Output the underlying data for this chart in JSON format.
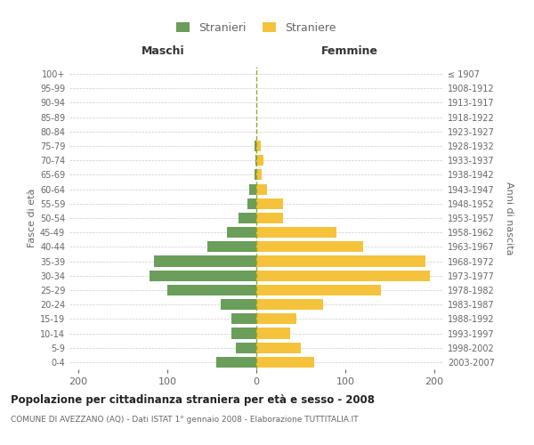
{
  "age_groups_bottom_to_top": [
    "0-4",
    "5-9",
    "10-14",
    "15-19",
    "20-24",
    "25-29",
    "30-34",
    "35-39",
    "40-44",
    "45-49",
    "50-54",
    "55-59",
    "60-64",
    "65-69",
    "70-74",
    "75-79",
    "80-84",
    "85-89",
    "90-94",
    "95-99",
    "100+"
  ],
  "birth_years_bottom_to_top": [
    "2003-2007",
    "1998-2002",
    "1993-1997",
    "1988-1992",
    "1983-1987",
    "1978-1982",
    "1973-1977",
    "1968-1972",
    "1963-1967",
    "1958-1962",
    "1953-1957",
    "1948-1952",
    "1943-1947",
    "1938-1942",
    "1933-1937",
    "1928-1932",
    "1923-1927",
    "1918-1922",
    "1913-1917",
    "1908-1912",
    "≤ 1907"
  ],
  "males_bottom_to_top": [
    45,
    23,
    28,
    28,
    40,
    100,
    120,
    115,
    55,
    33,
    20,
    10,
    8,
    2,
    1,
    2,
    0,
    0,
    0,
    0,
    0
  ],
  "females_bottom_to_top": [
    65,
    50,
    38,
    45,
    75,
    140,
    195,
    190,
    120,
    90,
    30,
    30,
    12,
    6,
    8,
    5,
    0,
    0,
    0,
    0,
    0
  ],
  "male_color": "#6a9e5a",
  "female_color": "#f5c33b",
  "center_line_color": "#9aaa20",
  "grid_color": "#cccccc",
  "text_color": "#666666",
  "title": "Popolazione per cittadinanza straniera per età e sesso - 2008",
  "subtitle": "COMUNE DI AVEZZANO (AQ) - Dati ISTAT 1° gennaio 2008 - Elaborazione TUTTITALIA.IT",
  "header_maschi": "Maschi",
  "header_femmine": "Femmine",
  "ylabel_left": "Fasce di età",
  "ylabel_right": "Anni di nascita",
  "legend_male": "Stranieri",
  "legend_female": "Straniere",
  "xlim": 210,
  "bar_height": 0.75,
  "background_color": "#ffffff"
}
